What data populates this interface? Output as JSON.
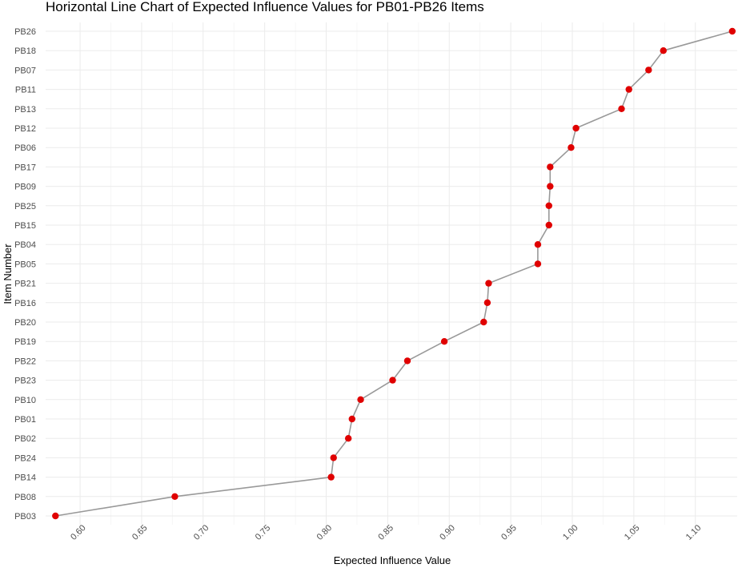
{
  "chart_data": {
    "type": "line",
    "title": "Horizontal Line Chart of Expected Influence Values for PB01-PB26 Items",
    "xlabel": "Expected Influence Value",
    "ylabel": "Item Number",
    "xlim": [
      0.572,
      1.134
    ],
    "x_ticks": [
      "0.60",
      "0.65",
      "0.70",
      "0.75",
      "0.80",
      "0.85",
      "0.90",
      "0.95",
      "1.00",
      "1.05",
      "1.10"
    ],
    "x_tick_values": [
      0.6,
      0.65,
      0.7,
      0.75,
      0.8,
      0.85,
      0.9,
      0.95,
      1.0,
      1.05,
      1.1
    ],
    "categories": [
      "PB03",
      "PB08",
      "PB14",
      "PB24",
      "PB02",
      "PB01",
      "PB10",
      "PB23",
      "PB22",
      "PB19",
      "PB20",
      "PB16",
      "PB21",
      "PB05",
      "PB04",
      "PB15",
      "PB25",
      "PB09",
      "PB17",
      "PB06",
      "PB12",
      "PB13",
      "PB11",
      "PB07",
      "PB18",
      "PB26"
    ],
    "values": [
      0.58,
      0.677,
      0.804,
      0.806,
      0.818,
      0.821,
      0.828,
      0.854,
      0.866,
      0.896,
      0.928,
      0.931,
      0.932,
      0.972,
      0.972,
      0.981,
      0.981,
      0.982,
      0.982,
      0.999,
      1.003,
      1.04,
      1.046,
      1.062,
      1.074,
      1.13
    ],
    "line_color": "#999999",
    "point_color": "#e00000",
    "grid": true
  }
}
